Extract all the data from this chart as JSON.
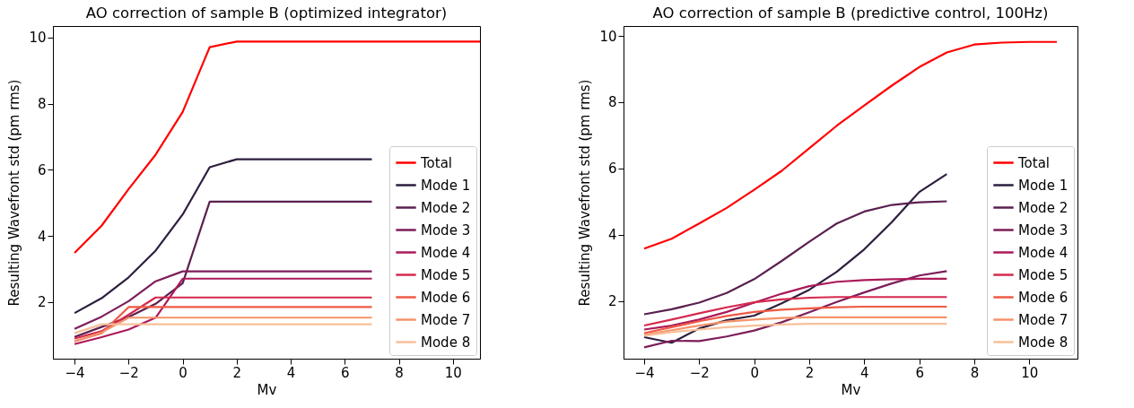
{
  "chart_data": [
    {
      "type": "line",
      "title": "AO correction of sample B (optimized integrator)",
      "xlabel": "Mv",
      "ylabel": "Resulting Wavefront std (pm rms)",
      "x": [
        -4,
        -3,
        -2,
        -1,
        0,
        1,
        2,
        3,
        4,
        5,
        6,
        7,
        8,
        9,
        10,
        11
      ],
      "xlim": [
        -4.8,
        11
      ],
      "xticks": [
        -4,
        -2,
        0,
        2,
        4,
        6,
        8,
        10
      ],
      "ylim": [
        0.29,
        10.35
      ],
      "yticks": [
        2,
        4,
        6,
        8,
        10
      ],
      "grid": false,
      "legend": "bottom right",
      "series": [
        {
          "name": "Total",
          "color": "#ff0000",
          "values": [
            3.49,
            4.31,
            5.42,
            6.46,
            7.75,
            9.71,
            9.88,
            9.88,
            9.88,
            9.88,
            9.88,
            9.88,
            9.88,
            9.88,
            9.88,
            9.88
          ]
        },
        {
          "name": "Mode 1",
          "color": "#2d1e3e",
          "values": [
            1.67,
            2.12,
            2.75,
            3.56,
            4.65,
            6.08,
            6.32,
            6.32,
            6.32,
            6.32,
            6.32,
            6.32,
            null,
            null,
            null,
            null
          ]
        },
        {
          "name": "Mode 2",
          "color": "#5a2050",
          "values": [
            0.95,
            1.25,
            1.55,
            1.95,
            2.57,
            5.04,
            5.04,
            5.04,
            5.04,
            5.04,
            5.04,
            5.04,
            null,
            null,
            null,
            null
          ]
        },
        {
          "name": "Mode 3",
          "color": "#7d1d5a",
          "values": [
            1.19,
            1.56,
            2.03,
            2.63,
            2.93,
            2.93,
            2.93,
            2.93,
            2.93,
            2.93,
            2.93,
            2.93,
            null,
            null,
            null,
            null
          ]
        },
        {
          "name": "Mode 4",
          "color": "#ab1a5a",
          "values": [
            0.73,
            0.94,
            1.17,
            1.53,
            2.71,
            2.71,
            2.71,
            2.71,
            2.71,
            2.71,
            2.71,
            2.71,
            null,
            null,
            null,
            null
          ]
        },
        {
          "name": "Mode 5",
          "color": "#d5294d",
          "values": [
            0.9,
            1.12,
            1.62,
            2.14,
            2.14,
            2.14,
            2.14,
            2.14,
            2.14,
            2.14,
            2.14,
            2.14,
            null,
            null,
            null,
            null
          ]
        },
        {
          "name": "Mode 6",
          "color": "#ee5a45",
          "values": [
            0.82,
            1.06,
            1.85,
            1.85,
            1.85,
            1.85,
            1.85,
            1.85,
            1.85,
            1.85,
            1.85,
            1.85,
            null,
            null,
            null,
            null
          ]
        },
        {
          "name": "Mode 7",
          "color": "#f5936a",
          "values": [
            0.81,
            1.08,
            1.53,
            1.53,
            1.53,
            1.53,
            1.53,
            1.53,
            1.53,
            1.53,
            1.53,
            1.53,
            null,
            null,
            null,
            null
          ]
        },
        {
          "name": "Mode 8",
          "color": "#f7c09a",
          "values": [
            1.06,
            1.33,
            1.33,
            1.33,
            1.33,
            1.33,
            1.33,
            1.33,
            1.33,
            1.33,
            1.33,
            1.33,
            null,
            null,
            null,
            null
          ]
        }
      ]
    },
    {
      "type": "line",
      "title": "AO correction of sample B (predictive control, 100Hz)",
      "xlabel": "Mv",
      "ylabel": "Resulting Wavefront std (pm rms)",
      "x": [
        -4,
        -3,
        -2,
        -1,
        0,
        1,
        2,
        3,
        4,
        5,
        6,
        7,
        8,
        9,
        10,
        11
      ],
      "xlim": [
        -4.75,
        11.75
      ],
      "xticks": [
        -4,
        -2,
        0,
        2,
        4,
        6,
        8,
        10
      ],
      "ylim": [
        0.26,
        10.3
      ],
      "yticks": [
        2,
        4,
        6,
        8,
        10
      ],
      "grid": false,
      "legend": "bottom right",
      "series": [
        {
          "name": "Total",
          "color": "#ff0000",
          "values": [
            3.58,
            3.88,
            4.34,
            4.81,
            5.36,
            5.93,
            6.61,
            7.29,
            7.9,
            8.5,
            9.06,
            9.5,
            9.74,
            9.8,
            9.82,
            9.82
          ]
        },
        {
          "name": "Mode 1",
          "color": "#2d1e3e",
          "values": [
            0.91,
            0.74,
            1.17,
            1.42,
            1.56,
            1.93,
            2.34,
            2.88,
            3.56,
            4.38,
            5.29,
            5.83,
            null,
            null,
            null,
            null
          ]
        },
        {
          "name": "Mode 2",
          "color": "#5a2050",
          "values": [
            1.6,
            1.75,
            1.95,
            2.24,
            2.66,
            3.21,
            3.79,
            4.34,
            4.7,
            4.9,
            4.98,
            5.01,
            null,
            null,
            null,
            null
          ]
        },
        {
          "name": "Mode 3",
          "color": "#7d1d5a",
          "values": [
            0.6,
            0.8,
            0.79,
            0.93,
            1.11,
            1.36,
            1.66,
            1.97,
            2.26,
            2.53,
            2.77,
            2.9,
            null,
            null,
            null,
            null
          ]
        },
        {
          "name": "Mode 4",
          "color": "#ab1a5a",
          "values": [
            1.14,
            1.26,
            1.44,
            1.67,
            1.95,
            2.22,
            2.45,
            2.58,
            2.63,
            2.66,
            2.67,
            2.67,
            null,
            null,
            null,
            null
          ]
        },
        {
          "name": "Mode 5",
          "color": "#d5294d",
          "values": [
            1.26,
            1.44,
            1.63,
            1.81,
            1.96,
            2.05,
            2.1,
            2.12,
            2.12,
            2.12,
            2.12,
            2.12,
            null,
            null,
            null,
            null
          ]
        },
        {
          "name": "Mode 6",
          "color": "#ee5a45",
          "values": [
            1.03,
            1.21,
            1.39,
            1.55,
            1.67,
            1.74,
            1.78,
            1.81,
            1.83,
            1.83,
            1.83,
            1.83,
            null,
            null,
            null,
            null
          ]
        },
        {
          "name": "Mode 7",
          "color": "#f5936a",
          "values": [
            0.98,
            1.12,
            1.26,
            1.38,
            1.44,
            1.49,
            1.51,
            1.51,
            1.51,
            1.51,
            1.51,
            1.51,
            null,
            null,
            null,
            null
          ]
        },
        {
          "name": "Mode 8",
          "color": "#f7c09a",
          "values": [
            0.95,
            1.06,
            1.14,
            1.21,
            1.26,
            1.29,
            1.31,
            1.31,
            1.31,
            1.31,
            1.31,
            1.31,
            null,
            null,
            null,
            null
          ]
        }
      ]
    }
  ]
}
